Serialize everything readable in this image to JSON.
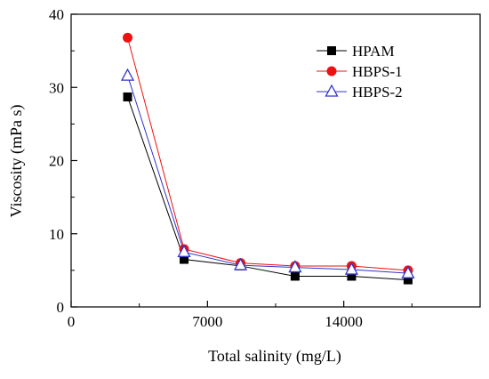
{
  "chart_data": {
    "type": "line",
    "title": "",
    "xlabel": "Total salinity (mg/L)",
    "ylabel": "Viscosity (mPa s)",
    "xlim": [
      0,
      21000
    ],
    "ylim": [
      0,
      40
    ],
    "x_ticks": [
      0,
      7000,
      14000
    ],
    "x_tick_labels": [
      "0",
      "7000",
      "14000"
    ],
    "y_ticks": [
      0,
      10,
      20,
      30,
      40
    ],
    "y_tick_labels": [
      "0",
      "10",
      "20",
      "30",
      "40"
    ],
    "grid": false,
    "legend_position": "top-right",
    "x": [
      2900,
      5800,
      8700,
      11500,
      14400,
      17300
    ],
    "series": [
      {
        "name": "HPAM",
        "values": [
          28.7,
          6.5,
          5.6,
          4.2,
          4.2,
          3.7
        ],
        "color": "#000000",
        "marker": "filled-square"
      },
      {
        "name": "HBPS-1",
        "values": [
          36.8,
          7.9,
          6.0,
          5.6,
          5.6,
          5.0
        ],
        "color": "#ee1111",
        "marker": "filled-circle"
      },
      {
        "name": "HBPS-2",
        "values": [
          31.6,
          7.5,
          5.7,
          5.4,
          5.1,
          4.6
        ],
        "color": "#3333cc",
        "marker": "open-triangle"
      }
    ]
  }
}
